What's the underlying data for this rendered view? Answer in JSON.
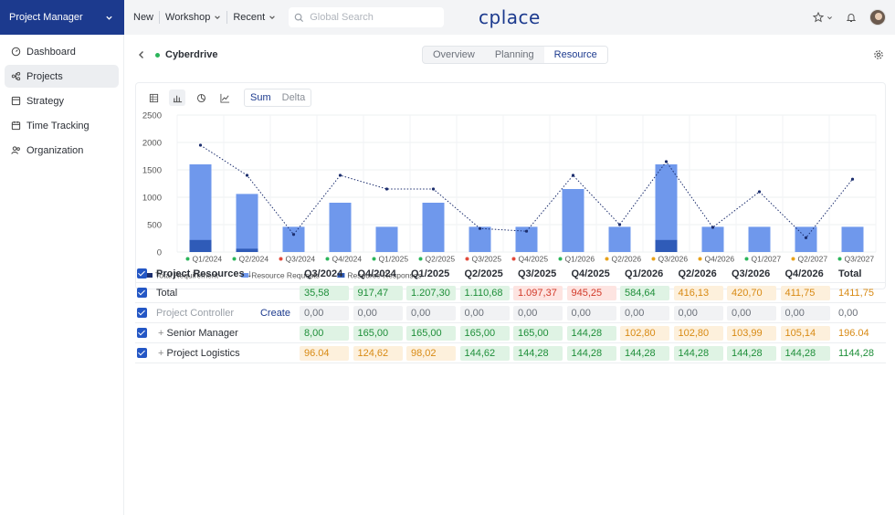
{
  "app_selector": {
    "label": "Project Manager"
  },
  "topbar": {
    "new": "New",
    "workshop": "Workshop",
    "recent": "Recent",
    "search_placeholder": "Global Search",
    "logo": "cplace"
  },
  "sidebar": {
    "items": [
      {
        "label": "Dashboard",
        "icon": "dashboard-icon"
      },
      {
        "label": "Projects",
        "icon": "projects-icon"
      },
      {
        "label": "Strategy",
        "icon": "strategy-icon"
      },
      {
        "label": "Time Tracking",
        "icon": "time-tracking-icon"
      },
      {
        "label": "Organization",
        "icon": "organization-icon"
      }
    ]
  },
  "project": {
    "name": "Cyberdrive",
    "status_color": "#2bb55a"
  },
  "tabs": [
    {
      "label": "Overview"
    },
    {
      "label": "Planning"
    },
    {
      "label": "Resource"
    }
  ],
  "chart_toolbar": {
    "sum": "Sum",
    "delta": "Delta"
  },
  "chart_data": {
    "type": "bar",
    "categories": [
      "Q1/2024",
      "Q2/2024",
      "Q3/2024",
      "Q4/2024",
      "Q1/2025",
      "Q2/2025",
      "Q3/2025",
      "Q4/2025",
      "Q1/2026",
      "Q2/2026",
      "Q3/2026",
      "Q4/2026",
      "Q1/2027",
      "Q2/2027",
      "Q3/2027"
    ],
    "category_status_colors": [
      "#2bb55a",
      "#2bb55a",
      "#e24a3b",
      "#2bb55a",
      "#2bb55a",
      "#2bb55a",
      "#e24a3b",
      "#e24a3b",
      "#2bb55a",
      "#e8a21a",
      "#e8a21a",
      "#e8a21a",
      "#2bb55a",
      "#e8a21a",
      "#2bb55a"
    ],
    "series": [
      {
        "name": "Total Requirement",
        "kind": "line",
        "color": "#1c2e6e",
        "values": [
          1950,
          1400,
          320,
          1400,
          1150,
          1150,
          430,
          380,
          1400,
          500,
          1650,
          450,
          1100,
          260,
          1330
        ]
      },
      {
        "name": "Resource Requests",
        "kind": "bar",
        "color": "#6f98ec",
        "values": [
          1600,
          1060,
          460,
          900,
          460,
          900,
          460,
          460,
          1150,
          460,
          1600,
          460,
          460,
          460,
          460
        ]
      },
      {
        "name": "Resource Responses",
        "kind": "bar",
        "color": "#2f5bb8",
        "values": [
          220,
          60,
          0,
          0,
          0,
          0,
          0,
          0,
          0,
          0,
          220,
          0,
          0,
          0,
          0
        ]
      }
    ],
    "ylim": [
      0,
      2500
    ],
    "yticks": [
      "0",
      "500",
      "1000",
      "1500",
      "2000",
      "2500"
    ],
    "grid": true,
    "legend_position": "bottom-left"
  },
  "table": {
    "header": {
      "name": "Project Resources",
      "columns": [
        "Q3/2024",
        "Q4/2024",
        "Q1/2025",
        "Q2/2025",
        "Q3/2025",
        "Q4/2025",
        "Q1/2026",
        "Q2/2026",
        "Q3/2026",
        "Q4/2026"
      ],
      "total": "Total"
    },
    "rows": [
      {
        "name": "Total",
        "action": "",
        "cells": [
          {
            "v": "35,58",
            "c": "green"
          },
          {
            "v": "917,47",
            "c": "green"
          },
          {
            "v": "1.207,30",
            "c": "green"
          },
          {
            "v": "1.110,68",
            "c": "green"
          },
          {
            "v": "1.097,37",
            "c": "red"
          },
          {
            "v": "945,25",
            "c": "red"
          },
          {
            "v": "584,64",
            "c": "green"
          },
          {
            "v": "416,13",
            "c": "orange"
          },
          {
            "v": "420,70",
            "c": "orange"
          },
          {
            "v": "411,75",
            "c": "orange"
          }
        ],
        "total": {
          "v": "1411,75",
          "c": "orange"
        }
      },
      {
        "name": "Project Controller",
        "action": "Create",
        "cells": [
          {
            "v": "0,00",
            "c": "grey"
          },
          {
            "v": "0,00",
            "c": "grey"
          },
          {
            "v": "0,00",
            "c": "grey"
          },
          {
            "v": "0,00",
            "c": "grey"
          },
          {
            "v": "0,00",
            "c": "grey"
          },
          {
            "v": "0,00",
            "c": "grey"
          },
          {
            "v": "0,00",
            "c": "grey"
          },
          {
            "v": "0,00",
            "c": "grey"
          },
          {
            "v": "0,00",
            "c": "grey"
          },
          {
            "v": "0,00",
            "c": "grey"
          }
        ],
        "total": {
          "v": "0,00",
          "c": "grey"
        }
      },
      {
        "name": "Senior Manager",
        "action": "",
        "expand": "+",
        "cells": [
          {
            "v": "8,00",
            "c": "green"
          },
          {
            "v": "165,00",
            "c": "green"
          },
          {
            "v": "165,00",
            "c": "green"
          },
          {
            "v": "165,00",
            "c": "green"
          },
          {
            "v": "165,00",
            "c": "green"
          },
          {
            "v": "144,28",
            "c": "green"
          },
          {
            "v": "102,80",
            "c": "orange"
          },
          {
            "v": "102,80",
            "c": "orange"
          },
          {
            "v": "103,99",
            "c": "orange"
          },
          {
            "v": "105,14",
            "c": "orange"
          }
        ],
        "total": {
          "v": "196.04",
          "c": "orange"
        }
      },
      {
        "name": "Project Logistics",
        "action": "",
        "expand": "+",
        "cells": [
          {
            "v": "96.04",
            "c": "orange"
          },
          {
            "v": "124,62",
            "c": "orange"
          },
          {
            "v": "98,02",
            "c": "orange"
          },
          {
            "v": "144,62",
            "c": "green"
          },
          {
            "v": "144,28",
            "c": "green"
          },
          {
            "v": "144,28",
            "c": "green"
          },
          {
            "v": "144,28",
            "c": "green"
          },
          {
            "v": "144,28",
            "c": "green"
          },
          {
            "v": "144,28",
            "c": "green"
          },
          {
            "v": "144,28",
            "c": "green"
          }
        ],
        "total": {
          "v": "1144,28",
          "c": "green"
        }
      }
    ]
  }
}
